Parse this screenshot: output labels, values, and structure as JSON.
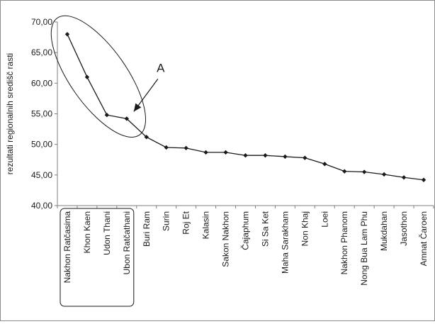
{
  "chart_data": {
    "type": "line",
    "title": "",
    "xlabel": "",
    "ylabel": "rezultati regionalnih središč rasti",
    "ylim": [
      40,
      70
    ],
    "yticks": [
      "40,00",
      "45,00",
      "50,00",
      "55,00",
      "60,00",
      "65,00",
      "70,00"
    ],
    "grid": false,
    "categories": [
      "Nakhon Ratčasima",
      "Khon Kaen",
      "Udon Thani",
      "Ubon Ratčathani",
      "Buri Ram",
      "Surin",
      "Roj Et",
      "Kalasin",
      "Sakon Nakhon",
      "Čajaphum",
      "Si Sa Ket",
      "Maha Sarakham",
      "Non Khaj",
      "Loei",
      "Nakhon Phanom",
      "Nong Bua Lam Phu",
      "Mukdahan",
      "Jasothon",
      "Amnat Čaroen"
    ],
    "values": [
      68.0,
      61.0,
      54.8,
      54.2,
      51.2,
      49.5,
      49.4,
      48.7,
      48.7,
      48.2,
      48.2,
      48.0,
      47.8,
      46.8,
      45.6,
      45.5,
      45.1,
      44.6,
      44.2
    ],
    "highlighted_categories": [
      "Nakhon Ratčasima",
      "Khon Kaen",
      "Udon Thani",
      "Ubon Ratčathani"
    ],
    "annotation": {
      "label": "A"
    },
    "colors": {
      "line": "#1a1a1a",
      "marker": "#1a1a1a",
      "axis": "#7f7f7f"
    }
  }
}
